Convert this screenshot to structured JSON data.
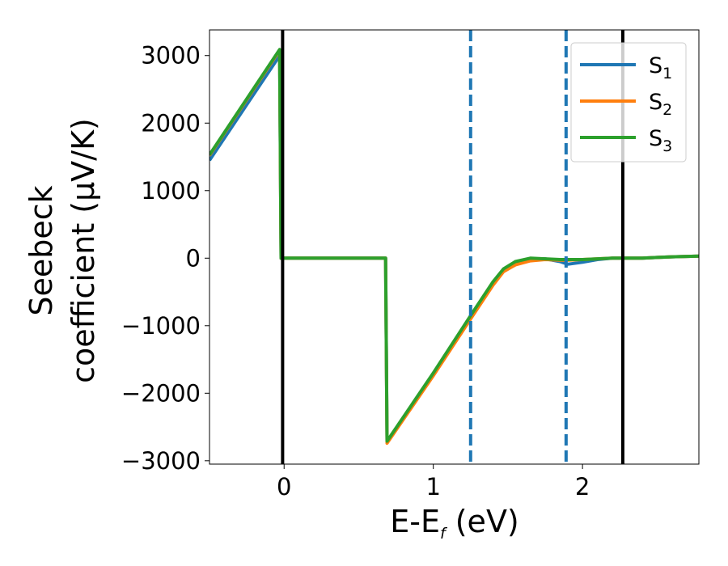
{
  "chart_data": {
    "type": "line",
    "xlabel": {
      "main": "E-E",
      "sub": "f",
      "unit": " (eV)"
    },
    "ylabel": {
      "line1": "Seebeck",
      "line2": "coefficient  (μV/K)"
    },
    "xlim": [
      -0.5,
      2.78
    ],
    "ylim": [
      -3050,
      3380
    ],
    "xticks": [
      0,
      1,
      2
    ],
    "yticks": [
      -3000,
      -2000,
      -1000,
      0,
      1000,
      2000,
      3000
    ],
    "ytick_labels": [
      "−3000",
      "−2000",
      "−1000",
      "0",
      "1000",
      "2000",
      "3000"
    ],
    "grid": false,
    "legend_position": "top-right",
    "vlines": [
      {
        "x": -0.01,
        "style": "solid",
        "color": "#000000"
      },
      {
        "x": 1.25,
        "style": "dashed",
        "color": "#1f77b4"
      },
      {
        "x": 1.89,
        "style": "dashed",
        "color": "#1f77b4"
      },
      {
        "x": 2.27,
        "style": "solid",
        "color": "#000000"
      }
    ],
    "series": [
      {
        "name": "S",
        "sub": "1",
        "color": "#1f77b4",
        "x": [
          -0.5,
          -0.03,
          -0.02,
          0.68,
          0.69,
          1.0,
          1.25,
          1.4,
          1.47,
          1.55,
          1.65,
          1.75,
          1.85,
          1.9,
          2.0,
          2.1,
          2.2,
          2.3,
          2.4,
          2.5,
          2.6,
          2.78
        ],
        "y": [
          1450,
          3000,
          0,
          0,
          -2720,
          -1720,
          -880,
          -380,
          -180,
          -70,
          -10,
          -10,
          -50,
          -90,
          -60,
          -20,
          0,
          0,
          0,
          10,
          20,
          30
        ]
      },
      {
        "name": "S",
        "sub": "2",
        "color": "#ff7f0e",
        "x": [
          -0.5,
          -0.03,
          -0.02,
          0.68,
          0.69,
          1.0,
          1.25,
          1.4,
          1.47,
          1.55,
          1.65,
          1.75,
          1.85,
          1.9,
          2.0,
          2.1,
          2.2,
          2.3,
          2.4,
          2.5,
          2.6,
          2.78
        ],
        "y": [
          1520,
          3080,
          0,
          0,
          -2740,
          -1740,
          -900,
          -400,
          -200,
          -100,
          -40,
          -20,
          -30,
          -30,
          -20,
          -10,
          0,
          0,
          0,
          10,
          20,
          30
        ]
      },
      {
        "name": "S",
        "sub": "3",
        "color": "#2ca02c",
        "x": [
          -0.5,
          -0.03,
          -0.02,
          0.68,
          0.69,
          1.0,
          1.25,
          1.4,
          1.47,
          1.55,
          1.65,
          1.75,
          1.85,
          1.9,
          2.0,
          2.1,
          2.2,
          2.3,
          2.4,
          2.5,
          2.6,
          2.78
        ],
        "y": [
          1530,
          3090,
          0,
          0,
          -2710,
          -1700,
          -850,
          -350,
          -160,
          -50,
          0,
          -10,
          -20,
          -20,
          -20,
          -10,
          0,
          0,
          0,
          10,
          20,
          30
        ]
      }
    ]
  }
}
